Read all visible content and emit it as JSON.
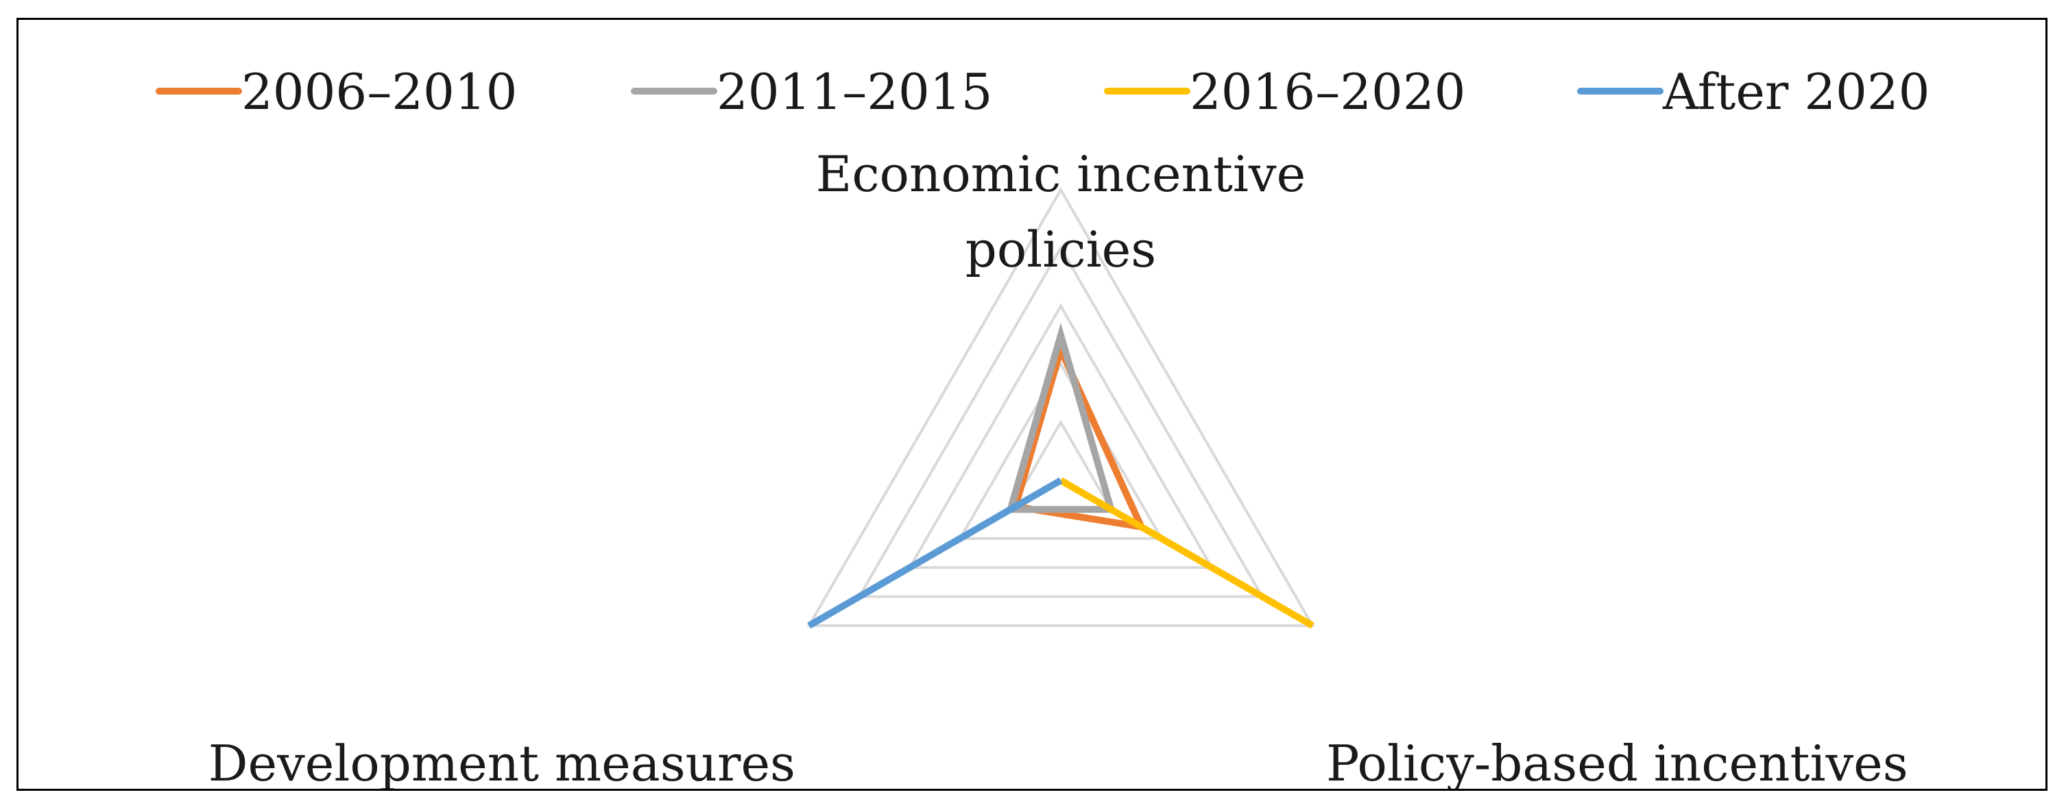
{
  "chart_data": {
    "type": "radar",
    "axes": [
      [
        "Economic incentive",
        "policies"
      ],
      [
        "Policy-based incentives"
      ],
      [
        "Development measures"
      ]
    ],
    "axis_names": [
      "Economic incentive policies",
      "Policy-based incentives",
      "Development measures"
    ],
    "range": [
      0,
      5
    ],
    "rings": 5,
    "grid": true,
    "legend_position": "top",
    "series": [
      {
        "name": "2006–2010",
        "color": "#ED7D31",
        "values": [
          2.25,
          1.6,
          0.9
        ]
      },
      {
        "name": "2011–2015",
        "color": "#A5A5A5",
        "values": [
          2.5,
          1.0,
          1.0
        ]
      },
      {
        "name": "2016–2020",
        "color": "#FFC000",
        "values": [
          0.0,
          5.0,
          0.0
        ]
      },
      {
        "name": "After 2020",
        "color": "#5B9BD5",
        "values": [
          0.0,
          0.0,
          5.0
        ]
      }
    ]
  }
}
